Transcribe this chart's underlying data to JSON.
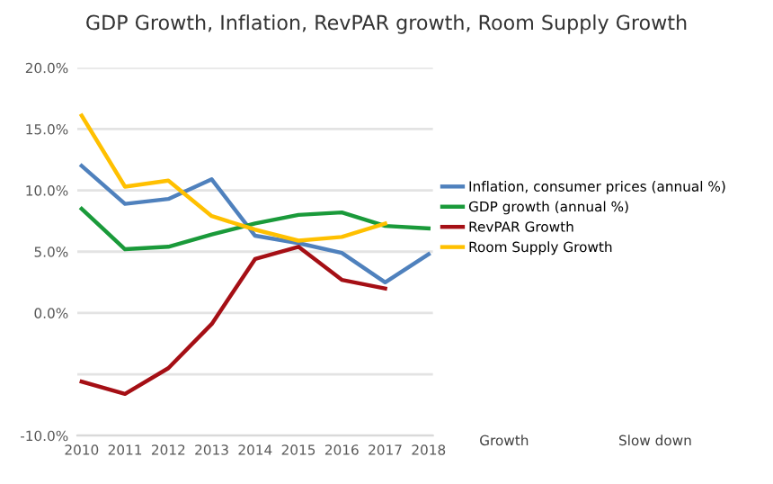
{
  "chart_data": {
    "type": "line",
    "title": "GDP Growth, Inflation, RevPAR growth, Room Supply Growth",
    "categories": [
      "2010",
      "2011",
      "2012",
      "2013",
      "2014",
      "2015",
      "2016",
      "2017",
      "2018"
    ],
    "series": [
      {
        "name": "Inflation, consumer prices (annual %)",
        "color": "#4f81bd",
        "values": [
          12.0,
          8.9,
          9.3,
          10.9,
          6.3,
          5.7,
          4.9,
          2.5,
          4.8
        ]
      },
      {
        "name": "GDP growth (annual %)",
        "color": "#1a9a3a",
        "values": [
          8.5,
          5.2,
          5.4,
          6.4,
          7.3,
          8.0,
          8.2,
          7.1,
          6.9
        ]
      },
      {
        "name": "RevPAR Growth",
        "color": "#a50f15",
        "values": [
          -5.6,
          -6.6,
          -4.5,
          -0.9,
          4.4,
          5.4,
          2.7,
          2.0,
          null
        ]
      },
      {
        "name": "Room Supply Growth",
        "color": "#ffc000",
        "values": [
          16.1,
          10.3,
          10.8,
          7.9,
          6.8,
          5.9,
          6.2,
          7.3,
          null
        ]
      }
    ],
    "ylim": [
      -10,
      20
    ],
    "yticks": [
      {
        "value": -10,
        "label": "-10.0%"
      },
      {
        "value": -5,
        "label": null
      },
      {
        "value": 0,
        "label": "0.0%"
      },
      {
        "value": 5,
        "label": "5.0%"
      },
      {
        "value": 10,
        "label": "10.0%"
      },
      {
        "value": 15,
        "label": "15.0%"
      },
      {
        "value": 20,
        "label": "20.0%"
      }
    ],
    "grid": "y",
    "legend": "right",
    "marker": "none",
    "line_style": "solid",
    "annotations": [
      "Growth",
      "Slow down"
    ]
  }
}
